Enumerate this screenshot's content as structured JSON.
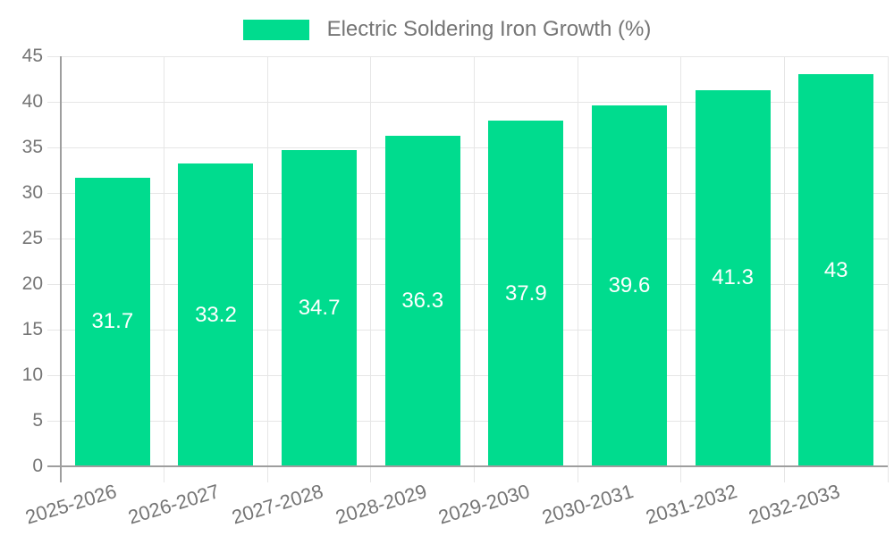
{
  "chart_data": {
    "type": "bar",
    "legend_label": "Electric Soldering Iron Growth (%)",
    "categories": [
      "2025-2026",
      "2026-2027",
      "2027-2028",
      "2028-2029",
      "2029-2030",
      "2030-2031",
      "2031-2032",
      "2032-2033"
    ],
    "values": [
      31.7,
      33.2,
      34.7,
      36.3,
      37.9,
      39.6,
      41.3,
      43
    ],
    "bar_value_labels": [
      "31.7",
      "33.2",
      "34.7",
      "36.3",
      "37.9",
      "39.6",
      "41.3",
      "43"
    ],
    "ylim": [
      0,
      45
    ],
    "ytick_step": 5,
    "ytick_labels": [
      "0",
      "5",
      "10",
      "15",
      "20",
      "25",
      "30",
      "35",
      "40",
      "45"
    ],
    "grid": true,
    "legend_position": "top",
    "colors": {
      "bar": "#00DC8E",
      "axis_line": "#9E9E9E",
      "gridline": "#E6E6E6",
      "axis_text": "#757575",
      "bar_label_text": "#FFFFFF",
      "background": "#FFFFFF"
    }
  }
}
